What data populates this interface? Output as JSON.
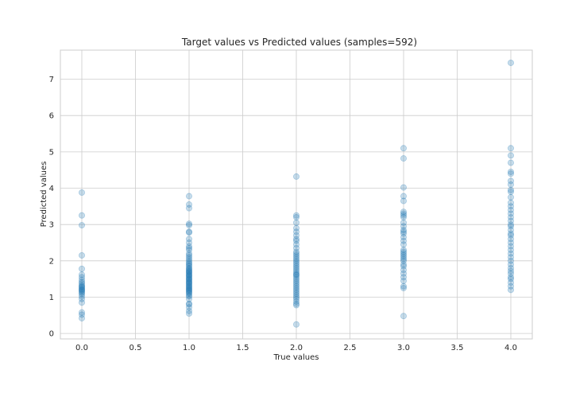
{
  "chart_data": {
    "type": "scatter",
    "title": "Target values vs Predicted values (samples=592)",
    "xlabel": "True values",
    "ylabel": "Predicted values",
    "xlim": [
      -0.2,
      4.2
    ],
    "ylim": [
      -0.15,
      7.8
    ],
    "xticks": [
      "0.0",
      "0.5",
      "1.0",
      "1.5",
      "2.0",
      "2.5",
      "3.0",
      "3.5",
      "4.0"
    ],
    "yticks": [
      "0",
      "1",
      "2",
      "3",
      "4",
      "5",
      "6",
      "7"
    ],
    "grid": true,
    "marker_color": "#1f77b4",
    "marker_alpha": 0.25,
    "points": [
      {
        "x": 0,
        "y": [
          0.42,
          0.52,
          0.58,
          0.85,
          0.95,
          1.02,
          1.08,
          1.12,
          1.15,
          1.18,
          1.2,
          1.22,
          1.25,
          1.28,
          1.3,
          1.33,
          1.38,
          1.42,
          1.48,
          1.55,
          1.62,
          1.78,
          2.15,
          2.98,
          3.25,
          3.88
        ]
      },
      {
        "x": 1,
        "y": [
          0.55,
          0.62,
          0.72,
          0.8,
          0.82,
          0.95,
          1.02,
          1.05,
          1.1,
          1.12,
          1.15,
          1.18,
          1.2,
          1.22,
          1.25,
          1.27,
          1.3,
          1.32,
          1.35,
          1.38,
          1.4,
          1.42,
          1.45,
          1.48,
          1.5,
          1.52,
          1.55,
          1.58,
          1.6,
          1.62,
          1.65,
          1.68,
          1.7,
          1.72,
          1.75,
          1.78,
          1.8,
          1.85,
          1.88,
          1.92,
          1.95,
          2.0,
          2.05,
          2.1,
          2.15,
          2.2,
          2.3,
          2.35,
          2.4,
          2.5,
          2.6,
          2.78,
          2.8,
          2.98,
          3.02,
          3.45,
          3.55,
          3.78
        ]
      },
      {
        "x": 2,
        "y": [
          0.25,
          0.78,
          0.82,
          0.88,
          0.95,
          1.0,
          1.05,
          1.1,
          1.15,
          1.2,
          1.25,
          1.3,
          1.35,
          1.4,
          1.45,
          1.5,
          1.55,
          1.6,
          1.62,
          1.65,
          1.7,
          1.75,
          1.8,
          1.85,
          1.9,
          1.95,
          2.0,
          2.05,
          2.1,
          2.15,
          2.2,
          2.25,
          2.35,
          2.45,
          2.55,
          2.6,
          2.7,
          2.8,
          2.9,
          3.05,
          3.2,
          3.25,
          4.32
        ]
      },
      {
        "x": 3,
        "y": [
          0.48,
          1.25,
          1.3,
          1.45,
          1.55,
          1.65,
          1.75,
          1.85,
          1.9,
          2.0,
          2.05,
          2.1,
          2.15,
          2.2,
          2.25,
          2.3,
          2.45,
          2.55,
          2.65,
          2.75,
          2.8,
          2.85,
          2.95,
          3.05,
          3.2,
          3.25,
          3.3,
          3.35,
          3.65,
          3.78,
          4.02,
          4.82,
          5.1
        ]
      },
      {
        "x": 4,
        "y": [
          1.2,
          1.3,
          1.4,
          1.5,
          1.55,
          1.65,
          1.72,
          1.8,
          1.9,
          2.0,
          2.1,
          2.2,
          2.3,
          2.4,
          2.5,
          2.6,
          2.7,
          2.75,
          2.85,
          2.95,
          3.0,
          3.1,
          3.2,
          3.3,
          3.4,
          3.5,
          3.6,
          3.75,
          3.9,
          3.95,
          4.1,
          4.2,
          4.4,
          4.45,
          4.7,
          4.9,
          5.1,
          7.45
        ]
      }
    ]
  }
}
